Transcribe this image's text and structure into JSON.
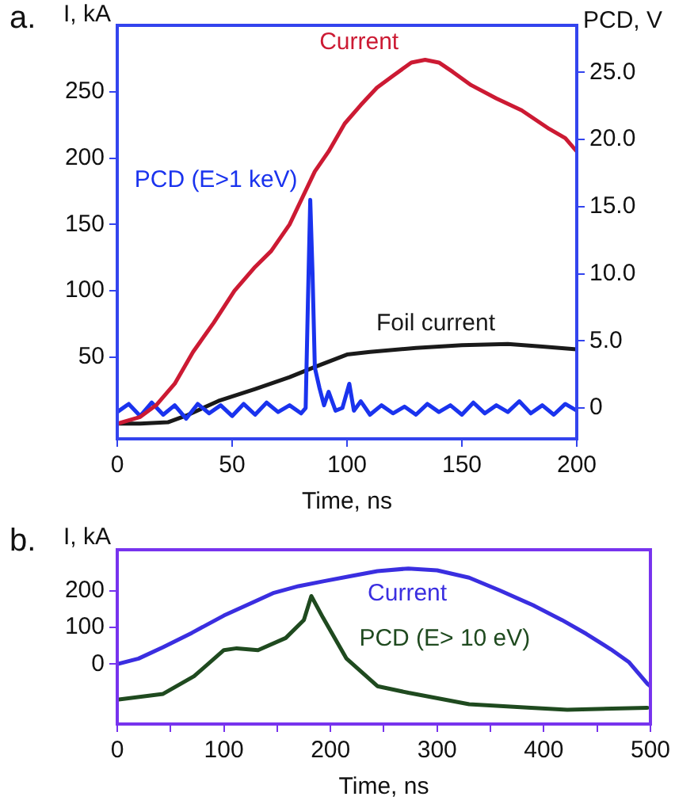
{
  "chart_data": [
    {
      "type": "line",
      "annotations": [
        "a."
      ],
      "xlabel": "Time, ns",
      "ylabel": "I, kA",
      "y2label": "PCD, V",
      "xlim": [
        0,
        200
      ],
      "xticks": [
        0,
        50,
        100,
        150,
        200
      ],
      "ylim": [
        -11.5,
        300
      ],
      "yticks": [
        50,
        100,
        150,
        200,
        250
      ],
      "y2lim": [
        -2.3,
        28.5
      ],
      "y2ticks": [
        0,
        {
          "value": 5,
          "label": "5.0"
        },
        {
          "value": 10,
          "label": "10.0"
        },
        {
          "value": 15,
          "label": "15.0"
        },
        {
          "value": 20,
          "label": "20.0"
        },
        {
          "value": 25,
          "label": "25.0"
        }
      ],
      "series": [
        {
          "name": "Current",
          "color": "#cc1a33",
          "x": [
            0,
            10,
            17,
            25,
            33,
            42,
            51,
            60,
            67,
            75,
            86,
            92,
            99,
            106,
            113,
            120,
            128,
            134,
            140,
            146,
            154,
            165,
            176,
            188,
            195,
            200
          ],
          "values": [
            0,
            5,
            14,
            30,
            54,
            76,
            100,
            118,
            130,
            150,
            190,
            205,
            226,
            240,
            253,
            262,
            272,
            274,
            272,
            265,
            255,
            245,
            236,
            222,
            215,
            205
          ]
        },
        {
          "name": "PCD (E>1 keV)",
          "color": "#1a33ee",
          "axis": "y2",
          "x": [
            0,
            5,
            10,
            15,
            20,
            25,
            30,
            35,
            40,
            45,
            50,
            55,
            60,
            65,
            70,
            75,
            80,
            82,
            83,
            84,
            85,
            86,
            88,
            90,
            92,
            95,
            98,
            101,
            103,
            106,
            110,
            115,
            120,
            125,
            130,
            135,
            140,
            145,
            150,
            155,
            160,
            165,
            170,
            175,
            180,
            185,
            190,
            195,
            200
          ],
          "values": [
            -0.3,
            0.3,
            -0.6,
            0.4,
            -0.5,
            0.2,
            -0.8,
            0.3,
            -0.4,
            0.2,
            -0.6,
            0.3,
            -0.5,
            0.4,
            -0.3,
            0.2,
            -0.4,
            0,
            8,
            15.5,
            10,
            3,
            1.5,
            0.2,
            1.2,
            -0.2,
            0,
            1.8,
            -0.2,
            0.5,
            -0.5,
            0.2,
            -0.4,
            0.1,
            -0.5,
            0.3,
            -0.3,
            0.2,
            -0.5,
            0.4,
            -0.4,
            0.2,
            -0.3,
            0.5,
            -0.4,
            0.2,
            -0.5,
            0.3,
            -0.2
          ]
        },
        {
          "name": "Foil current",
          "color": "#1a1a1a",
          "x": [
            0,
            10,
            22,
            30,
            44,
            60,
            75,
            85,
            100,
            110,
            130,
            150,
            170,
            185,
            200
          ],
          "values": [
            0,
            0,
            1,
            6,
            17,
            26,
            35,
            42,
            52,
            54,
            57,
            59,
            60,
            58,
            56
          ]
        }
      ]
    },
    {
      "type": "line",
      "annotations": [
        "b."
      ],
      "xlabel": "Time, ns",
      "ylabel": "I, kA",
      "xlim": [
        0,
        500
      ],
      "xticks": [
        0,
        {
          "value": 50,
          "label": null
        },
        100,
        {
          "value": 150,
          "label": null
        },
        200,
        {
          "value": 250,
          "label": null
        },
        300,
        {
          "value": 350,
          "label": null
        },
        400,
        {
          "value": 450,
          "label": null
        },
        500
      ],
      "ylim": [
        -163,
        311
      ],
      "yticks": [
        0,
        100,
        200
      ],
      "series": [
        {
          "name": "Current",
          "color": "#3a2ee0",
          "x": [
            0,
            20,
            43,
            70,
            100,
            125,
            147,
            170,
            193,
            220,
            244,
            273,
            300,
            330,
            359,
            390,
            417,
            440,
            463,
            480,
            497,
            500
          ],
          "values": [
            0,
            15,
            46,
            85,
            132,
            165,
            194,
            212,
            225,
            240,
            253,
            260,
            255,
            235,
            200,
            160,
            120,
            82,
            40,
            5,
            -53,
            -60
          ]
        },
        {
          "name": "PCD (E> 10 eV)",
          "color": "#1f4a1f",
          "x": [
            0,
            43,
            72,
            100,
            112,
            132,
            158,
            175,
            182,
            193,
            215,
            244,
            273,
            330,
            388,
            422,
            497
          ],
          "values": [
            -97,
            -81,
            -33,
            38,
            43,
            38,
            71,
            120,
            185,
            126,
            15,
            -60,
            -78,
            -109,
            -119,
            -124,
            -119
          ]
        }
      ]
    }
  ]
}
